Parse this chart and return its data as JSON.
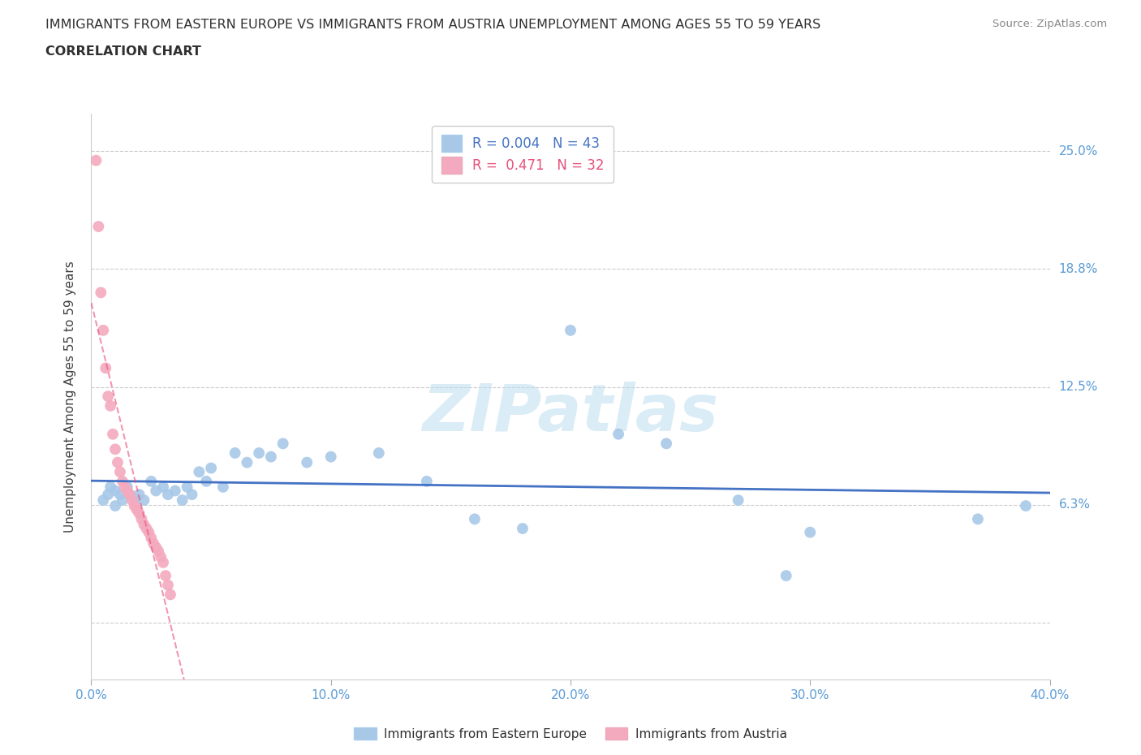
{
  "title_line1": "IMMIGRANTS FROM EASTERN EUROPE VS IMMIGRANTS FROM AUSTRIA UNEMPLOYMENT AMONG AGES 55 TO 59 YEARS",
  "title_line2": "CORRELATION CHART",
  "source": "Source: ZipAtlas.com",
  "ylabel": "Unemployment Among Ages 55 to 59 years",
  "xmin": 0.0,
  "xmax": 0.4,
  "ymin": -0.03,
  "ymax": 0.27,
  "yticks": [
    0.0,
    0.0625,
    0.125,
    0.1875,
    0.25
  ],
  "ytick_labels": [
    "",
    "6.3%",
    "12.5%",
    "18.8%",
    "25.0%"
  ],
  "xticks": [
    0.0,
    0.1,
    0.2,
    0.3,
    0.4
  ],
  "xtick_labels": [
    "0.0%",
    "10.0%",
    "20.0%",
    "30.0%",
    "40.0%"
  ],
  "legend_blue_r": "0.004",
  "legend_blue_n": "43",
  "legend_pink_r": "0.471",
  "legend_pink_n": "32",
  "legend_blue_label": "Immigrants from Eastern Europe",
  "legend_pink_label": "Immigrants from Austria",
  "blue_dot_color": "#A8C8E8",
  "pink_dot_color": "#F4AABE",
  "blue_line_color": "#4472C4",
  "pink_line_color": "#E8507A",
  "title_color": "#303030",
  "axis_color": "#5B9BD5",
  "grid_color": "#CCCCCC",
  "watermark": "ZIPatlas",
  "blue_x": [
    0.005,
    0.007,
    0.008,
    0.01,
    0.01,
    0.012,
    0.013,
    0.015,
    0.016,
    0.018,
    0.02,
    0.022,
    0.025,
    0.027,
    0.03,
    0.032,
    0.035,
    0.038,
    0.04,
    0.042,
    0.045,
    0.048,
    0.05,
    0.055,
    0.06,
    0.065,
    0.07,
    0.075,
    0.08,
    0.09,
    0.1,
    0.12,
    0.14,
    0.16,
    0.18,
    0.2,
    0.22,
    0.24,
    0.27,
    0.29,
    0.3,
    0.37,
    0.39
  ],
  "blue_y": [
    0.065,
    0.068,
    0.072,
    0.07,
    0.062,
    0.068,
    0.065,
    0.072,
    0.068,
    0.065,
    0.068,
    0.065,
    0.075,
    0.07,
    0.072,
    0.068,
    0.07,
    0.065,
    0.072,
    0.068,
    0.08,
    0.075,
    0.082,
    0.072,
    0.09,
    0.085,
    0.09,
    0.088,
    0.095,
    0.085,
    0.088,
    0.09,
    0.075,
    0.055,
    0.05,
    0.155,
    0.1,
    0.095,
    0.065,
    0.025,
    0.048,
    0.055,
    0.062
  ],
  "pink_x": [
    0.002,
    0.003,
    0.004,
    0.005,
    0.006,
    0.007,
    0.008,
    0.009,
    0.01,
    0.011,
    0.012,
    0.013,
    0.014,
    0.015,
    0.016,
    0.017,
    0.018,
    0.019,
    0.02,
    0.021,
    0.022,
    0.023,
    0.024,
    0.025,
    0.026,
    0.027,
    0.028,
    0.029,
    0.03,
    0.031,
    0.032,
    0.033
  ],
  "pink_y": [
    0.245,
    0.21,
    0.175,
    0.155,
    0.135,
    0.12,
    0.115,
    0.1,
    0.092,
    0.085,
    0.08,
    0.075,
    0.072,
    0.07,
    0.068,
    0.065,
    0.062,
    0.06,
    0.058,
    0.055,
    0.052,
    0.05,
    0.048,
    0.045,
    0.042,
    0.04,
    0.038,
    0.035,
    0.032,
    0.025,
    0.02,
    0.015
  ]
}
